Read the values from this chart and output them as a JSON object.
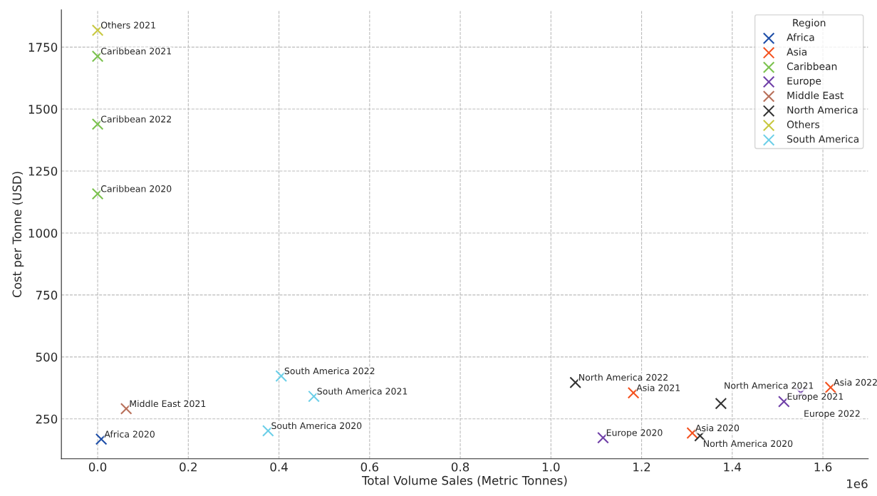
{
  "chart_data": {
    "type": "scatter",
    "xlabel": "Total Volume Sales (Metric Tonnes)",
    "ylabel": "Cost per Tonne (USD)",
    "legend_title": "Region",
    "legend": "top right",
    "grid": true,
    "marker": "cross",
    "xlim": [
      -0.08,
      1.7
    ],
    "ylim": [
      89,
      1900
    ],
    "xticks": [
      {
        "value": 0,
        "label": "0.0"
      },
      0.2,
      0.4,
      0.6,
      0.8,
      {
        "value": 1,
        "label": "1.0"
      },
      1.2,
      1.4,
      1.6
    ],
    "yticks": [
      250,
      500,
      750,
      1000,
      1250,
      1500,
      1750
    ],
    "series": [
      {
        "name": "Africa",
        "color": "#1f4fa8",
        "x": [
          0.008
        ],
        "values": [
          168
        ]
      },
      {
        "name": "Asia",
        "color": "#f4511e",
        "x": [
          1.312,
          1.182,
          1.617
        ],
        "values": [
          193,
          355,
          377
        ]
      },
      {
        "name": "Caribbean",
        "color": "#7cc24f",
        "x": [
          0,
          0,
          0
        ],
        "values": [
          1158,
          1713,
          1439
        ]
      },
      {
        "name": "Europe",
        "color": "#7040a8",
        "x": [
          1.115,
          1.514,
          1.551
        ],
        "values": [
          174,
          320,
          355
        ]
      },
      {
        "name": "Middle East",
        "color": "#b8705a",
        "x": [
          0.063
        ],
        "values": [
          291
        ]
      },
      {
        "name": "North America",
        "color": "#333333",
        "x": [
          1.329,
          1.375,
          1.054
        ],
        "values": [
          182,
          312,
          397
        ]
      },
      {
        "name": "Others",
        "color": "#c8c840",
        "x": [
          0
        ],
        "values": [
          1818
        ]
      },
      {
        "name": "South America",
        "color": "#6ccfe8",
        "x": [
          0.376,
          0.477,
          0.405
        ],
        "values": [
          202,
          341,
          423
        ]
      }
    ],
    "annotations": [
      {
        "text": "Africa 2020",
        "x": 0.008,
        "y": 168
      },
      {
        "text": "Asia 2020",
        "x": 1.312,
        "y": 193
      },
      {
        "text": "Asia 2021",
        "x": 1.182,
        "y": 355
      },
      {
        "text": "Asia 2022",
        "x": 1.617,
        "y": 377
      },
      {
        "text": "Caribbean 2020",
        "x": 0,
        "y": 1158
      },
      {
        "text": "Caribbean 2021",
        "x": 0,
        "y": 1713
      },
      {
        "text": "Caribbean 2022",
        "x": 0,
        "y": 1439
      },
      {
        "text": "Europe 2020",
        "x": 1.115,
        "y": 174
      },
      {
        "text": "Europe 2021",
        "x": 1.514,
        "y": 320
      },
      {
        "text": "Europe 2022",
        "x": 1.551,
        "y": 355
      },
      {
        "text": "Middle East 2021",
        "x": 0.063,
        "y": 291
      },
      {
        "text": "North America 2020",
        "x": 1.329,
        "y": 182
      },
      {
        "text": "North America 2021",
        "x": 1.375,
        "y": 312
      },
      {
        "text": "North America 2022",
        "x": 1.054,
        "y": 397
      },
      {
        "text": "Others 2021",
        "x": 0,
        "y": 1818
      },
      {
        "text": "South America 2020",
        "x": 0.376,
        "y": 202
      },
      {
        "text": "South America 2021",
        "x": 0.477,
        "y": 341
      },
      {
        "text": "South America 2022",
        "x": 0.405,
        "y": 423
      },
      "1e6"
    ]
  }
}
